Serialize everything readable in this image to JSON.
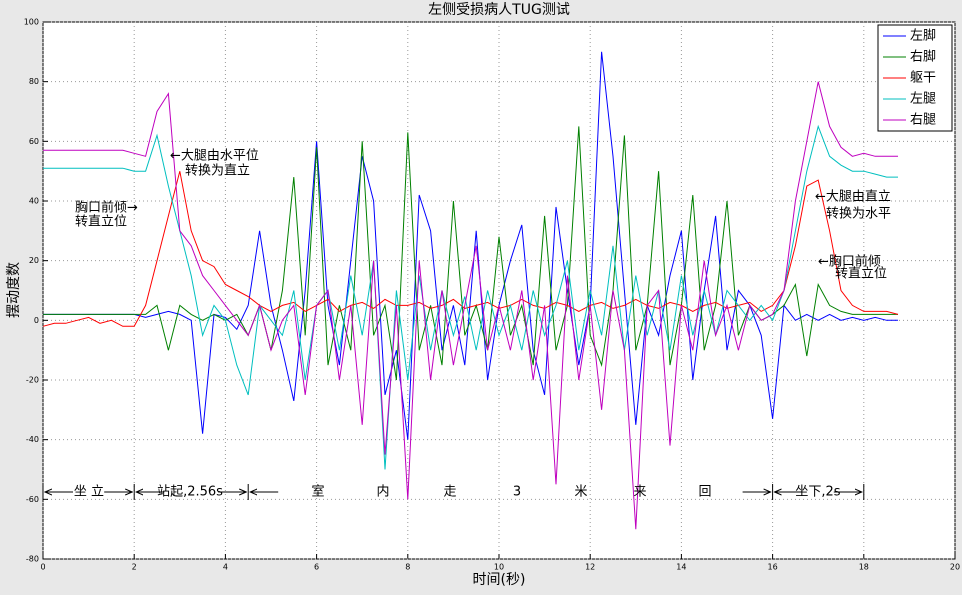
{
  "chart_data": {
    "type": "line",
    "title": "左侧受损病人TUG测试",
    "x_label": "时间(秒)",
    "y_label": "摆动度数",
    "xlim": [
      0,
      20
    ],
    "xticks": [
      0,
      2,
      4,
      6,
      8,
      10,
      12,
      14,
      16,
      18,
      20
    ],
    "ylim": [
      -80,
      100
    ],
    "yticks": [
      -80,
      -60,
      -40,
      -20,
      0,
      20,
      40,
      60,
      80,
      100
    ],
    "grid": true,
    "legend": "top-right",
    "x": [
      0,
      0.25,
      0.5,
      0.75,
      1,
      1.25,
      1.5,
      1.75,
      2,
      2.25,
      2.5,
      2.75,
      3,
      3.25,
      3.5,
      3.75,
      4,
      4.25,
      4.5,
      4.75,
      5,
      5.25,
      5.5,
      5.75,
      6,
      6.25,
      6.5,
      6.75,
      7,
      7.25,
      7.5,
      7.75,
      8,
      8.25,
      8.5,
      8.75,
      9,
      9.25,
      9.5,
      9.75,
      10,
      10.25,
      10.5,
      10.75,
      11,
      11.25,
      11.5,
      11.75,
      12,
      12.25,
      12.5,
      12.75,
      13,
      13.25,
      13.5,
      13.75,
      14,
      14.25,
      14.5,
      14.75,
      15,
      15.25,
      15.5,
      15.75,
      16,
      16.25,
      16.5,
      16.75,
      17,
      17.25,
      17.5,
      17.75,
      18,
      18.25,
      18.5,
      18.75
    ],
    "series": [
      {
        "name": "左脚",
        "color": "#0000ff",
        "values": [
          2,
          2,
          2,
          2,
          2,
          2,
          2,
          2,
          2,
          1,
          2,
          3,
          2,
          0,
          -38,
          2,
          1,
          -3,
          5,
          30,
          5,
          -10,
          -27,
          10,
          60,
          5,
          -15,
          20,
          55,
          40,
          -25,
          -10,
          -40,
          42,
          30,
          -10,
          5,
          -15,
          30,
          -20,
          5,
          20,
          32,
          -10,
          -25,
          38,
          10,
          -15,
          5,
          90,
          55,
          10,
          -35,
          5,
          -5,
          15,
          30,
          -20,
          10,
          35,
          -10,
          10,
          5,
          -5,
          -33,
          5,
          0,
          2,
          0,
          2,
          0,
          1,
          0,
          1,
          0,
          0
        ]
      },
      {
        "name": "右脚",
        "color": "#008000",
        "values": [
          2,
          2,
          2,
          2,
          2,
          2,
          2,
          2,
          2,
          2,
          5,
          -10,
          5,
          2,
          0,
          2,
          0,
          2,
          -5,
          5,
          -10,
          10,
          48,
          -5,
          58,
          -15,
          5,
          -10,
          60,
          -5,
          5,
          -20,
          63,
          -10,
          5,
          -15,
          40,
          -5,
          5,
          -10,
          28,
          -5,
          5,
          -15,
          35,
          -10,
          5,
          65,
          -5,
          -15,
          10,
          62,
          -10,
          5,
          50,
          -15,
          5,
          42,
          -10,
          5,
          40,
          -5,
          5,
          0,
          2,
          5,
          12,
          -12,
          12,
          5,
          3,
          2,
          2,
          2,
          2,
          2
        ]
      },
      {
        "name": "躯干",
        "color": "#ff0000",
        "values": [
          -2,
          -1,
          -1,
          0,
          1,
          -1,
          0,
          -2,
          -2,
          5,
          20,
          35,
          50,
          30,
          20,
          18,
          12,
          10,
          8,
          5,
          3,
          5,
          6,
          3,
          5,
          7,
          3,
          5,
          6,
          4,
          7,
          5,
          5,
          6,
          4,
          5,
          7,
          4,
          5,
          6,
          4,
          5,
          7,
          5,
          4,
          6,
          5,
          3,
          5,
          6,
          4,
          5,
          7,
          5,
          4,
          6,
          5,
          3,
          5,
          6,
          4,
          5,
          6,
          3,
          5,
          10,
          25,
          45,
          47,
          30,
          10,
          5,
          3,
          3,
          3,
          2
        ]
      },
      {
        "name": "左腿",
        "color": "#00bfbf",
        "values": [
          51,
          51,
          51,
          51,
          51,
          51,
          51,
          51,
          50,
          50,
          62,
          45,
          30,
          15,
          -5,
          5,
          0,
          -15,
          -25,
          5,
          0,
          -5,
          10,
          -20,
          5,
          10,
          -10,
          15,
          -5,
          20,
          -50,
          10,
          -20,
          15,
          -10,
          10,
          -5,
          8,
          -10,
          10,
          -5,
          5,
          -10,
          10,
          -5,
          5,
          20,
          -10,
          10,
          -5,
          25,
          -10,
          15,
          -5,
          10,
          -10,
          15,
          -5,
          10,
          -5,
          10,
          5,
          0,
          5,
          0,
          10,
          30,
          50,
          65,
          55,
          52,
          50,
          50,
          49,
          48,
          48
        ]
      },
      {
        "name": "右腿",
        "color": "#bf00bf",
        "values": [
          57,
          57,
          57,
          57,
          57,
          57,
          57,
          57,
          56,
          55,
          70,
          76,
          30,
          25,
          15,
          10,
          5,
          0,
          -5,
          5,
          -10,
          0,
          5,
          -25,
          5,
          10,
          -20,
          5,
          -35,
          20,
          -45,
          5,
          -60,
          20,
          -20,
          10,
          -15,
          5,
          25,
          -10,
          5,
          -10,
          10,
          -20,
          5,
          -55,
          15,
          -20,
          5,
          -30,
          10,
          -10,
          -70,
          5,
          10,
          -42,
          5,
          -10,
          20,
          -5,
          5,
          -10,
          5,
          0,
          2,
          10,
          40,
          60,
          80,
          65,
          58,
          55,
          56,
          55,
          55,
          55
        ]
      }
    ],
    "annotations": [
      "←大腿由水平位",
      "转换为直立",
      "胸口前倾→",
      "转直立位",
      "←大腿由直立",
      "转换为水平",
      "←胸口前倾",
      "转直立位"
    ],
    "phases": [
      "坐 立",
      "站起,2.56s",
      "室",
      "内",
      "走",
      "3",
      "米",
      "来",
      "回",
      "坐下,2s"
    ]
  }
}
